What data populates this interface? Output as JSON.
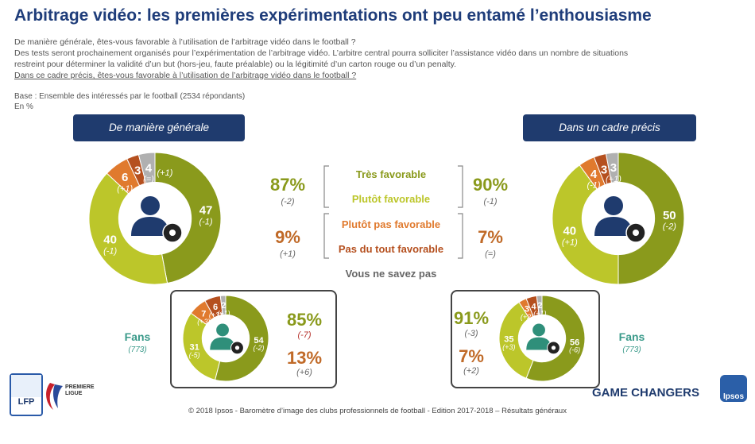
{
  "title": "Arbitrage vidéo: les premières expérimentations ont peu entamé l’enthousiasme",
  "intro": {
    "q1": "De manière générale, êtes-vous favorable à l’utilisation de l’arbitrage vidéo dans le football ?",
    "q2a": "Des tests seront prochainement organisés pour l’expérimentation de l’arbitrage vidéo. L’arbitre central pourra solliciter l’assistance vidéo dans un nombre de situations",
    "q2b": "restreint pour déterminer la validité d’un but (hors-jeu, faute préalable) ou la légitimité d’un carton rouge ou d’un penalty.",
    "q2c": "Dans ce cadre précis, êtes-vous favorable à l’utilisation de l’arbitrage vidéo dans le football ?"
  },
  "base": "Base : Ensemble des intéressés par le football (2534 répondants)",
  "unit": "En %",
  "left_header": "De manière générale",
  "right_header": "Dans un cadre précis",
  "legend": {
    "tres_favorable": "Très favorable",
    "plutot_favorable": "Plutôt favorable",
    "plutot_pas": "Plutôt pas favorable",
    "pas_du_tout": "Pas du tout favorable",
    "nsp": "Vous ne savez pas"
  },
  "totals": {
    "left_fav": "87%",
    "left_fav_d": "(-2)",
    "left_unfav": "9%",
    "left_unfav_d": "(+1)",
    "right_fav": "90%",
    "right_fav_d": "(-1)",
    "right_unfav": "7%",
    "right_unfav_d": "(=)"
  },
  "fans": {
    "label": "Fans",
    "count": "(773)",
    "left_fav": "85%",
    "left_fav_d": "(-7)",
    "left_unfav": "13%",
    "left_unfav_d": "(+6)",
    "right_fav": "91%",
    "right_fav_d": "(-3)",
    "right_unfav": "7%",
    "right_unfav_d": "(+2)"
  },
  "colors": {
    "tres": "#8a9a1c",
    "plutot": "#bcc62a",
    "plutot_pas": "#e07a2e",
    "pas_du_tout": "#b5501f",
    "nsp": "#b0b0b0",
    "header": "#1f3b6e",
    "fav_text": "#8a9a1c",
    "unfav_text": "#c06a28"
  },
  "chart_data": [
    {
      "type": "pie",
      "name": "De manière générale",
      "categories": [
        "Très favorable",
        "Plutôt favorable",
        "Plutôt pas favorable",
        "Pas du tout favorable",
        "Vous ne savez pas"
      ],
      "values": [
        47,
        40,
        6,
        3,
        4
      ],
      "labels": [
        "47",
        "40",
        "6",
        "3",
        "4"
      ],
      "changes": [
        "(-1)",
        "(-1)",
        "(+1)",
        "",
        "(=)"
      ],
      "extra_change": "(+1)"
    },
    {
      "type": "pie",
      "name": "Dans un cadre précis",
      "categories": [
        "Très favorable",
        "Plutôt favorable",
        "Plutôt pas favorable",
        "Pas du tout favorable",
        "Vous ne savez pas"
      ],
      "values": [
        50,
        40,
        4,
        3,
        3
      ],
      "labels": [
        "50",
        "40",
        "4",
        "3",
        "3"
      ],
      "changes": [
        "(-2)",
        "(+1)",
        "(-1)",
        "",
        "(+1)"
      ],
      "extra_change": ""
    },
    {
      "type": "pie",
      "name": "Fans - De manière générale",
      "categories": [
        "Très favorable",
        "Plutôt favorable",
        "Plutôt pas favorable",
        "Pas du tout favorable",
        "Vous ne savez pas"
      ],
      "values": [
        54,
        31,
        7,
        6,
        2
      ],
      "labels": [
        "54",
        "31",
        "7",
        "6",
        "2"
      ],
      "changes": [
        "(-2)",
        "(-5)",
        "(+3)",
        "(+3)",
        "(+1)"
      ],
      "extra_change": ""
    },
    {
      "type": "pie",
      "name": "Fans - Dans un cadre précis",
      "categories": [
        "Très favorable",
        "Plutôt favorable",
        "Plutôt pas favorable",
        "Pas du tout favorable",
        "Vous ne savez pas"
      ],
      "values": [
        56,
        35,
        3,
        4,
        2
      ],
      "labels": [
        "56",
        "35",
        "3",
        "4",
        "2"
      ],
      "changes": [
        "(-6)",
        "(+3)",
        "(+2)",
        "",
        "(+1)"
      ],
      "extra_change": ""
    }
  ],
  "footer": "© 2018 Ipsos - Baromètre d’image des clubs professionnels de football - Edition 2017-2018 – Résultats généraux",
  "brand": {
    "game_changers": "GAME CHANGERS",
    "ipsos": "Ipsos",
    "lfp": "LFP",
    "premiere_ligue": "PREMIERE LIGUE"
  }
}
